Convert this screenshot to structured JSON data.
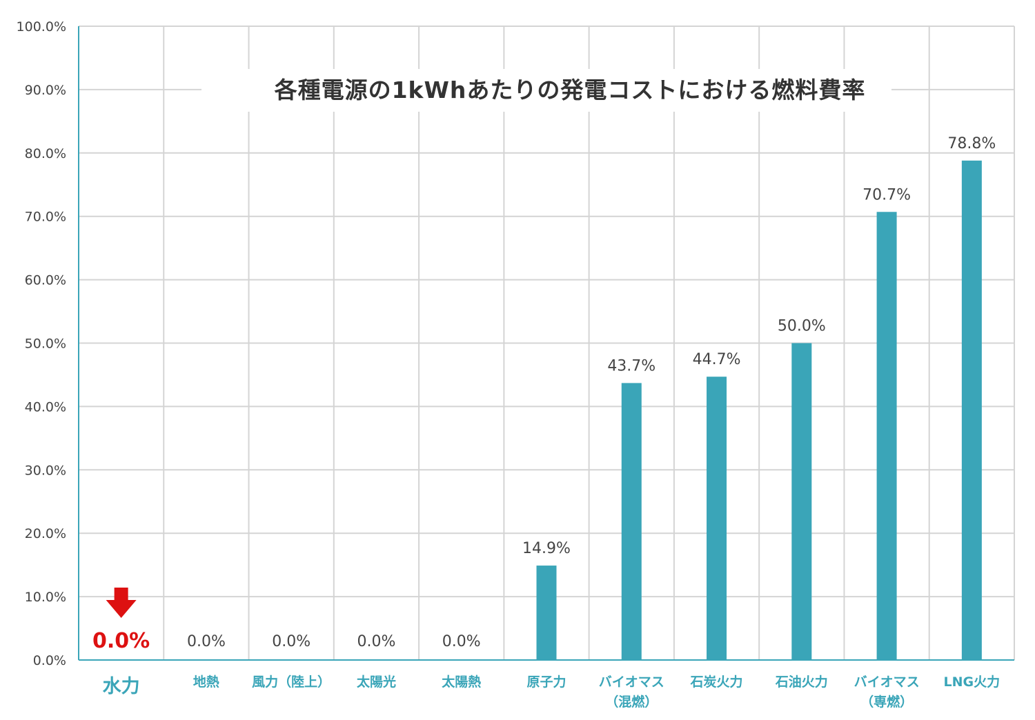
{
  "chart_data": {
    "type": "bar",
    "title": "各種電源の1kWhあたりの発電コストにおける燃料費率",
    "xlabel": "",
    "ylabel": "",
    "ylim": [
      0,
      100
    ],
    "yticks": [
      "0.0%",
      "10.0%",
      "20.0%",
      "30.0%",
      "40.0%",
      "50.0%",
      "60.0%",
      "70.0%",
      "80.0%",
      "90.0%",
      "100.0%"
    ],
    "categories": [
      [
        "水力"
      ],
      [
        "地熱"
      ],
      [
        "風力（陸上）"
      ],
      [
        "太陽光"
      ],
      [
        "太陽熱"
      ],
      [
        "原子力"
      ],
      [
        "バイオマス",
        "（混燃）"
      ],
      [
        "石炭火力"
      ],
      [
        "石油火力"
      ],
      [
        "バイオマス",
        "（専燃）"
      ],
      [
        "LNG火力"
      ]
    ],
    "values": [
      0,
      0,
      0,
      0,
      0,
      14.9,
      43.7,
      44.7,
      50.0,
      70.7,
      78.8
    ],
    "value_labels": [
      "0.0%",
      "0.0%",
      "0.0%",
      "0.0%",
      "0.0%",
      "14.9%",
      "43.7%",
      "44.7%",
      "50.0%",
      "70.7%",
      "78.8%"
    ],
    "highlight_index": 0,
    "grid": true,
    "colors": {
      "bar": "#3aa5b8",
      "axis": "#3aa5b8",
      "highlight": "#dd1111",
      "grid": "#d4d4d4"
    },
    "annotations": [
      {
        "type": "arrow-down-icon",
        "category_index": 0,
        "color": "#dd1111"
      }
    ]
  }
}
